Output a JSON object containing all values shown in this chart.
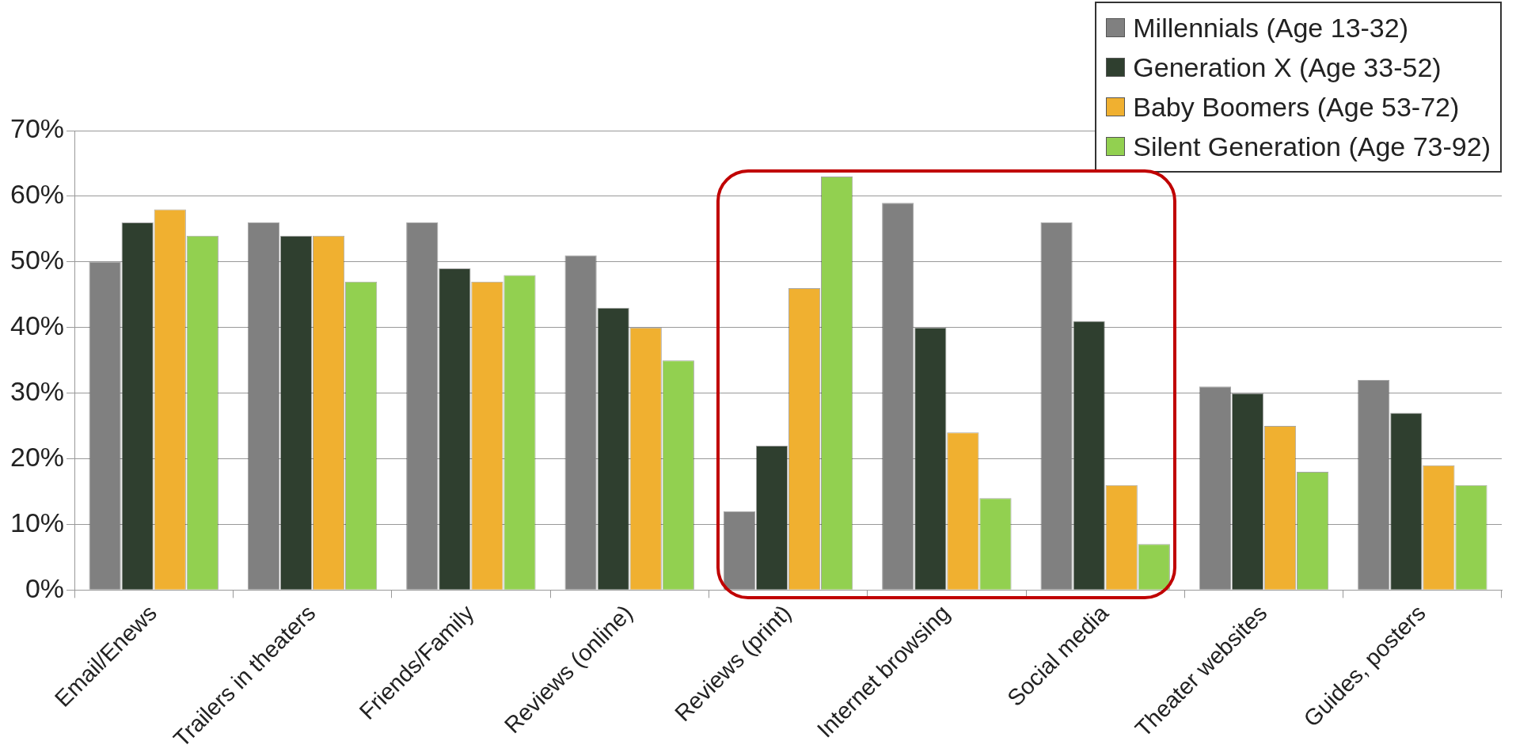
{
  "chart_data": {
    "type": "bar",
    "categories": [
      "Email/Enews",
      "Trailers in theaters",
      "Friends/Family",
      "Reviews (online)",
      "Reviews (print)",
      "Internet browsing",
      "Social media",
      "Theater websites",
      "Guides, posters"
    ],
    "series": [
      {
        "name": "Millennials (Age 13-32)",
        "color": "#808080",
        "values": [
          50,
          56,
          56,
          51,
          12,
          59,
          56,
          31,
          32
        ]
      },
      {
        "name": "Generation X (Age 33-52)",
        "color": "#2f3f2f",
        "values": [
          56,
          54,
          49,
          43,
          22,
          40,
          41,
          30,
          27
        ]
      },
      {
        "name": "Baby Boomers (Age 53-72)",
        "color": "#f0b030",
        "values": [
          58,
          54,
          47,
          40,
          46,
          24,
          16,
          25,
          19
        ]
      },
      {
        "name": "Silent Generation (Age 73-92)",
        "color": "#92d050",
        "values": [
          54,
          47,
          48,
          35,
          63,
          14,
          7,
          18,
          16
        ]
      }
    ],
    "ylim": [
      0,
      70
    ],
    "yticks": [
      {
        "value": 0,
        "label": "0%"
      },
      {
        "value": 10,
        "label": "10%"
      },
      {
        "value": 20,
        "label": "20%"
      },
      {
        "value": 30,
        "label": "30%"
      },
      {
        "value": 40,
        "label": "40%"
      },
      {
        "value": 50,
        "label": "50%"
      },
      {
        "value": 60,
        "label": "60%"
      },
      {
        "value": 70,
        "label": "70%"
      }
    ],
    "grid": "y",
    "legend": "top right"
  }
}
